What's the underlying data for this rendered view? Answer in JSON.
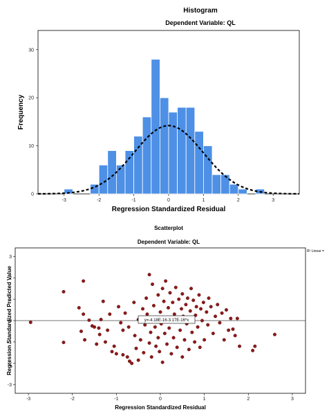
{
  "chart_data": [
    {
      "type": "bar",
      "title": "Histogram",
      "subtitle": "Dependent Variable: QL",
      "xlabel": "Regression Standardized Residual",
      "ylabel": "Frequency",
      "xlim": [
        -3.75,
        3.75
      ],
      "ylim": [
        0,
        34
      ],
      "x_ticks": [
        "-3",
        "-2",
        "-1",
        "0",
        "1",
        "2",
        "3"
      ],
      "y_ticks": [
        "0",
        "10",
        "20",
        "30"
      ],
      "bin_width": 0.25,
      "bin_starts": [
        -3.0,
        -2.75,
        -2.5,
        -2.25,
        -2.0,
        -1.75,
        -1.5,
        -1.25,
        -1.0,
        -0.75,
        -0.5,
        -0.25,
        0.0,
        0.25,
        0.5,
        0.75,
        1.0,
        1.25,
        1.5,
        1.75,
        2.0,
        2.25,
        2.5
      ],
      "values": [
        1,
        0,
        0,
        2,
        6,
        9,
        6,
        9,
        12,
        16,
        28,
        20,
        17,
        18,
        18,
        13,
        10,
        4,
        4,
        2,
        1,
        0,
        1
      ],
      "normal_curve": {
        "mean": 0.0,
        "sd": 0.99,
        "n": 141
      },
      "bar_color": "#4d90e6",
      "curve_color": "#000000"
    },
    {
      "type": "scatter",
      "title": "Scatterplot",
      "subtitle": "Dependent Variable: QL",
      "xlabel": "Regression Standardized Residual",
      "ylabel": "Regression Standardized Predicted Value",
      "xlim": [
        -3.3,
        3.3
      ],
      "ylim": [
        -3.4,
        3.4
      ],
      "x_ticks": [
        "-3",
        "-2",
        "-1",
        "0",
        "1",
        "2",
        "3"
      ],
      "y_ticks": [
        "-3",
        "-2",
        "-1",
        "0",
        "1",
        "2",
        "3"
      ],
      "legend_text": "R² Linear = ",
      "fit_line_label": "y=-4.18E-16-3.17E-16*x",
      "fit_line": {
        "intercept": 0,
        "slope": 0
      },
      "point_color": "#8b1a1a",
      "points": [
        [
          -2.95,
          -0.08
        ],
        [
          -2.2,
          1.35
        ],
        [
          -2.2,
          -1.02
        ],
        [
          -1.75,
          1.85
        ],
        [
          -1.85,
          0.6
        ],
        [
          -1.75,
          0.3
        ],
        [
          -1.8,
          -0.5
        ],
        [
          -1.72,
          -0.9
        ],
        [
          -1.62,
          0.02
        ],
        [
          -1.55,
          -0.25
        ],
        [
          -1.5,
          -0.3
        ],
        [
          -1.45,
          -1.1
        ],
        [
          -1.4,
          -0.35
        ],
        [
          -1.38,
          -0.65
        ],
        [
          -1.35,
          0.05
        ],
        [
          -1.3,
          0.9
        ],
        [
          -1.25,
          -1.0
        ],
        [
          -1.2,
          -0.45
        ],
        [
          -1.15,
          0.3
        ],
        [
          -1.1,
          -1.45
        ],
        [
          -1.05,
          -1.2
        ],
        [
          -1.0,
          -1.55
        ],
        [
          -0.95,
          0.65
        ],
        [
          -0.9,
          -0.1
        ],
        [
          -0.85,
          -1.6
        ],
        [
          -0.85,
          -0.45
        ],
        [
          -0.8,
          0.35
        ],
        [
          -0.75,
          -1.7
        ],
        [
          -0.72,
          -0.3
        ],
        [
          -0.7,
          -1.9
        ],
        [
          -0.65,
          -2.0
        ],
        [
          -0.6,
          0.85
        ],
        [
          -0.58,
          -0.7
        ],
        [
          -0.55,
          -1.3
        ],
        [
          -0.5,
          0.05
        ],
        [
          -0.5,
          -1.85
        ],
        [
          -0.45,
          -0.9
        ],
        [
          -0.4,
          0.55
        ],
        [
          -0.38,
          -1.5
        ],
        [
          -0.35,
          -0.2
        ],
        [
          -0.32,
          1.05
        ],
        [
          -0.3,
          0.3
        ],
        [
          -0.25,
          2.15
        ],
        [
          -0.25,
          -1.05
        ],
        [
          -0.22,
          -0.55
        ],
        [
          -0.2,
          -1.7
        ],
        [
          -0.18,
          1.7
        ],
        [
          -0.15,
          0.7
        ],
        [
          -0.12,
          -0.3
        ],
        [
          -0.1,
          -1.2
        ],
        [
          -0.08,
          0.1
        ],
        [
          -0.05,
          1.2
        ],
        [
          -0.05,
          -0.8
        ],
        [
          -0.02,
          -1.45
        ],
        [
          0.0,
          0.4
        ],
        [
          0.02,
          -0.15
        ],
        [
          0.05,
          1.5
        ],
        [
          0.05,
          -1.95
        ],
        [
          0.08,
          0.9
        ],
        [
          0.1,
          -0.6
        ],
        [
          0.12,
          1.85
        ],
        [
          0.15,
          -1.1
        ],
        [
          0.15,
          0.15
        ],
        [
          0.18,
          0.6
        ],
        [
          0.2,
          -0.35
        ],
        [
          0.22,
          1.3
        ],
        [
          0.25,
          -1.55
        ],
        [
          0.28,
          0.85
        ],
        [
          0.3,
          -0.8
        ],
        [
          0.32,
          0.3
        ],
        [
          0.35,
          1.55
        ],
        [
          0.38,
          -1.25
        ],
        [
          0.4,
          0.05
        ],
        [
          0.42,
          1.0
        ],
        [
          0.45,
          -0.45
        ],
        [
          0.48,
          0.55
        ],
        [
          0.5,
          -1.7
        ],
        [
          0.5,
          1.25
        ],
        [
          0.52,
          0.2
        ],
        [
          0.55,
          -0.9
        ],
        [
          0.58,
          0.75
        ],
        [
          0.6,
          -0.15
        ],
        [
          0.62,
          1.05
        ],
        [
          0.65,
          -1.35
        ],
        [
          0.68,
          0.45
        ],
        [
          0.7,
          1.5
        ],
        [
          0.72,
          -0.55
        ],
        [
          0.75,
          0.95
        ],
        [
          0.78,
          -1.0
        ],
        [
          0.8,
          0.25
        ],
        [
          0.82,
          0.65
        ],
        [
          0.85,
          -0.3
        ],
        [
          0.88,
          1.2
        ],
        [
          0.9,
          -1.25
        ],
        [
          0.92,
          0.55
        ],
        [
          0.95,
          0.0
        ],
        [
          0.98,
          0.85
        ],
        [
          1.0,
          -0.9
        ],
        [
          1.05,
          0.4
        ],
        [
          1.08,
          -0.2
        ],
        [
          1.1,
          1.05
        ],
        [
          1.15,
          0.65
        ],
        [
          1.2,
          -0.6
        ],
        [
          1.25,
          0.2
        ],
        [
          1.3,
          0.75
        ],
        [
          1.35,
          -0.1
        ],
        [
          1.4,
          0.35
        ],
        [
          1.45,
          -0.9
        ],
        [
          1.5,
          0.5
        ],
        [
          1.55,
          -0.45
        ],
        [
          1.6,
          0.1
        ],
        [
          1.65,
          -0.4
        ],
        [
          1.7,
          -0.7
        ],
        [
          1.75,
          0.1
        ],
        [
          1.8,
          -1.2
        ],
        [
          2.1,
          -1.4
        ],
        [
          2.15,
          -1.2
        ],
        [
          2.6,
          -0.65
        ]
      ]
    }
  ]
}
